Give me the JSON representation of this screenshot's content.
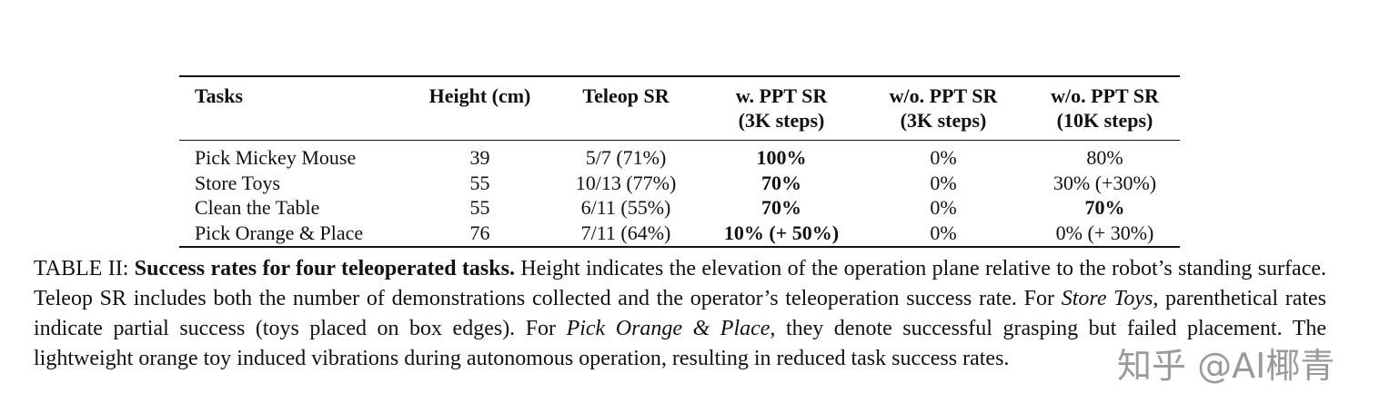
{
  "table": {
    "header": [
      [
        "Tasks"
      ],
      [
        "Height (cm)"
      ],
      [
        "Teleop SR"
      ],
      [
        "w. PPT SR",
        "(3K steps)"
      ],
      [
        "w/o. PPT SR",
        "(3K steps)"
      ],
      [
        "w/o. PPT SR",
        "(10K steps)"
      ]
    ],
    "rows": [
      [
        "Pick Mickey Mouse",
        "39",
        "5/7 (71%)",
        "100%",
        "0%",
        "80%"
      ],
      [
        "Store Toys",
        "55",
        "10/13 (77%)",
        "70%",
        "0%",
        "30% (+30%)"
      ],
      [
        "Clean the Table",
        "55",
        "6/11 (55%)",
        "70%",
        "0%",
        "70%"
      ],
      [
        "Pick Orange & Place",
        "76",
        "7/11 (64%)",
        "10% (+ 50%)",
        "0%",
        "0% (+ 30%)"
      ]
    ],
    "bold_cells": [
      [
        0,
        3
      ],
      [
        1,
        3
      ],
      [
        2,
        3
      ],
      [
        2,
        5
      ],
      [
        3,
        3
      ]
    ]
  },
  "caption": {
    "segments": [
      {
        "text": "TABLE II: ",
        "style": "normal"
      },
      {
        "text": "Success rates for four teleoperated tasks.",
        "style": "bold"
      },
      {
        "text": " Height indicates the elevation of the operation plane relative to the robot’s standing surface. Teleop SR includes both the number of demonstrations collected and the operator’s teleoperation success rate. For ",
        "style": "normal"
      },
      {
        "text": "Store Toys",
        "style": "italic"
      },
      {
        "text": ", parenthetical rates indicate partial success (toys placed on box edges). For ",
        "style": "normal"
      },
      {
        "text": "Pick Orange & Place",
        "style": "italic"
      },
      {
        "text": ", they denote successful grasping but failed placement. The lightweight orange toy induced vibrations during autonomous operation, resulting in reduced task success rates.",
        "style": "normal"
      }
    ]
  },
  "watermark": "知乎 @AI椰青"
}
